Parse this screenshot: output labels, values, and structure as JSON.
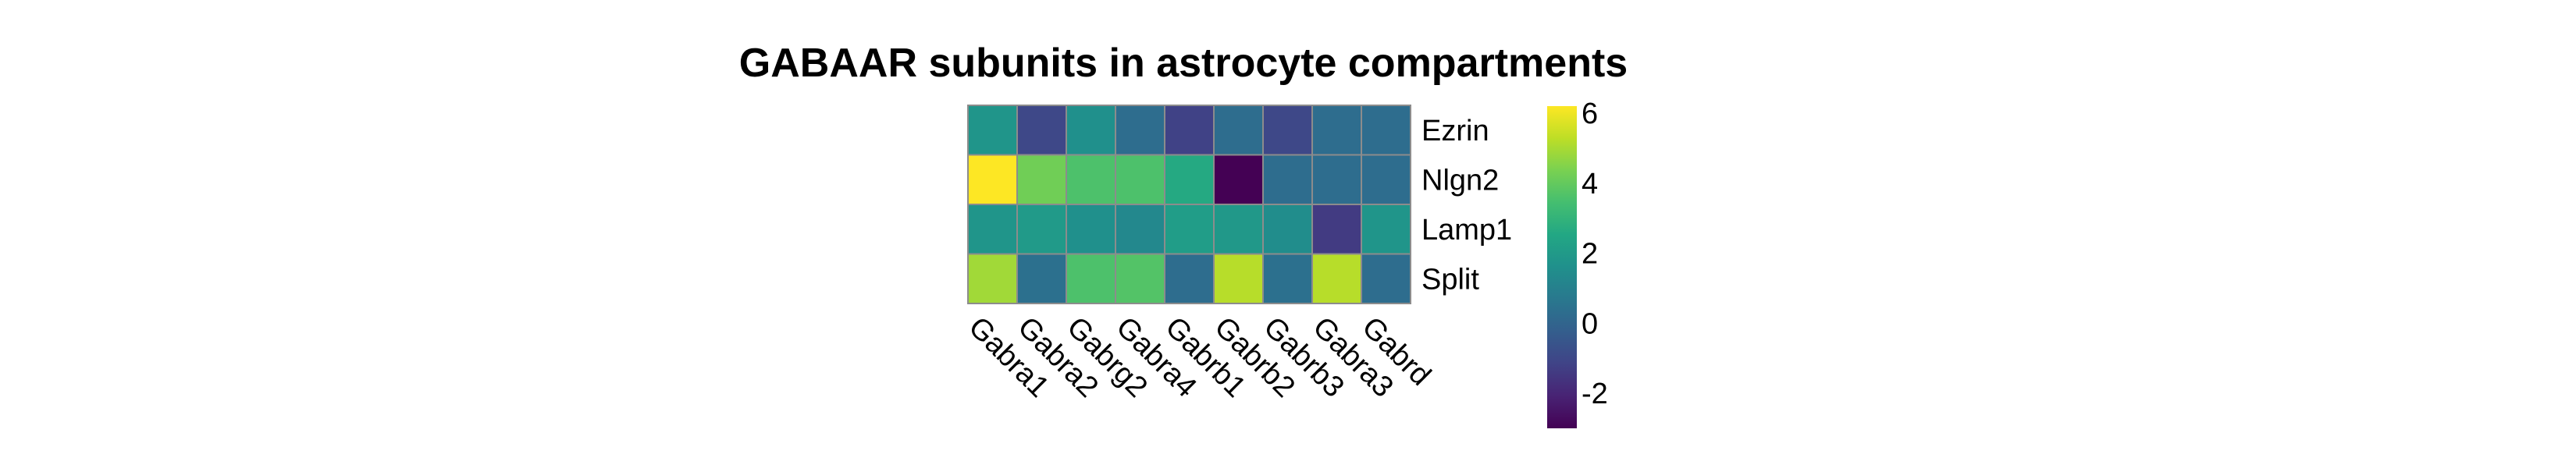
{
  "chart_data": {
    "type": "heatmap",
    "title": "GABAAR subunits in astrocyte compartments",
    "rows": [
      "Ezrin",
      "Nlgn2",
      "Lamp1",
      "Split"
    ],
    "columns": [
      "Gabra1",
      "Gabra2",
      "Gabrg2",
      "Gabra4",
      "Gabrb1",
      "Gabrb2",
      "Gabrb3",
      "Gabra3",
      "Gabrd"
    ],
    "values": [
      [
        1.8,
        -1.0,
        1.6,
        0.3,
        -1.2,
        0.3,
        -1.0,
        0.3,
        0.3
      ],
      [
        6.2,
        4.2,
        3.6,
        3.6,
        2.6,
        -3.0,
        0.3,
        0.3,
        0.3
      ],
      [
        1.8,
        2.0,
        1.6,
        1.3,
        2.1,
        1.9,
        1.5,
        -1.4,
        1.8
      ],
      [
        4.9,
        0.4,
        3.6,
        3.7,
        0.3,
        5.2,
        0.4,
        5.2,
        0.3
      ]
    ],
    "colorscale": "viridis",
    "zlim": [
      -3,
      6.2
    ],
    "legend": {
      "ticks": [
        -2,
        0,
        2,
        4,
        6
      ],
      "placement": "right"
    },
    "grid": true,
    "xlabel": "",
    "ylabel": ""
  }
}
